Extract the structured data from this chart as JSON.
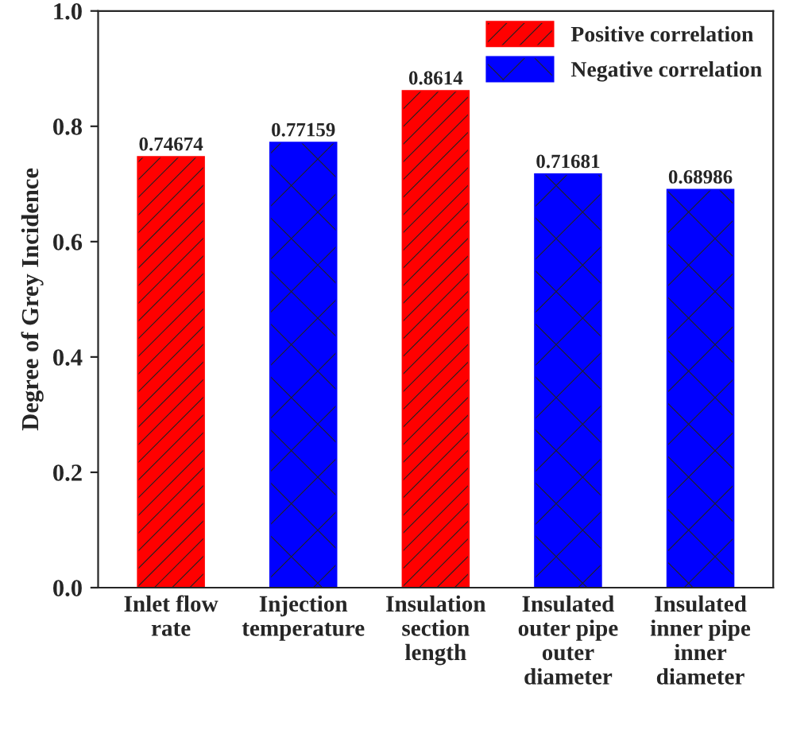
{
  "chart_data": {
    "type": "bar",
    "ylabel": "Degree of Grey Incidence",
    "categories": [
      "Inlet flow\nrate",
      "Injection\ntemperature",
      "Insulation\nsection\nlength",
      "Insulated\nouter pipe\nouter\ndiameter",
      "Insulated\ninner pipe\ninner\ndiameter"
    ],
    "series": [
      {
        "name": "Positive correlation",
        "color": "#ff0000",
        "values": [
          0.74674,
          null,
          0.8614,
          null,
          null
        ]
      },
      {
        "name": "Negative correlation",
        "color": "#0000ff",
        "values": [
          null,
          0.77159,
          null,
          0.71681,
          0.68986
        ]
      }
    ],
    "ylim": [
      0,
      1.0
    ],
    "yticks": [
      {
        "value": 0,
        "label": "0.0"
      },
      {
        "value": 0.2,
        "label": "0.2"
      },
      {
        "value": 0.4,
        "label": "0.4"
      },
      {
        "value": 0.6,
        "label": "0.6"
      },
      {
        "value": 0.8,
        "label": "0.8"
      },
      {
        "value": 1.0,
        "label": "1.0"
      }
    ],
    "data_labels": true,
    "legend": "top right",
    "grid": false
  }
}
